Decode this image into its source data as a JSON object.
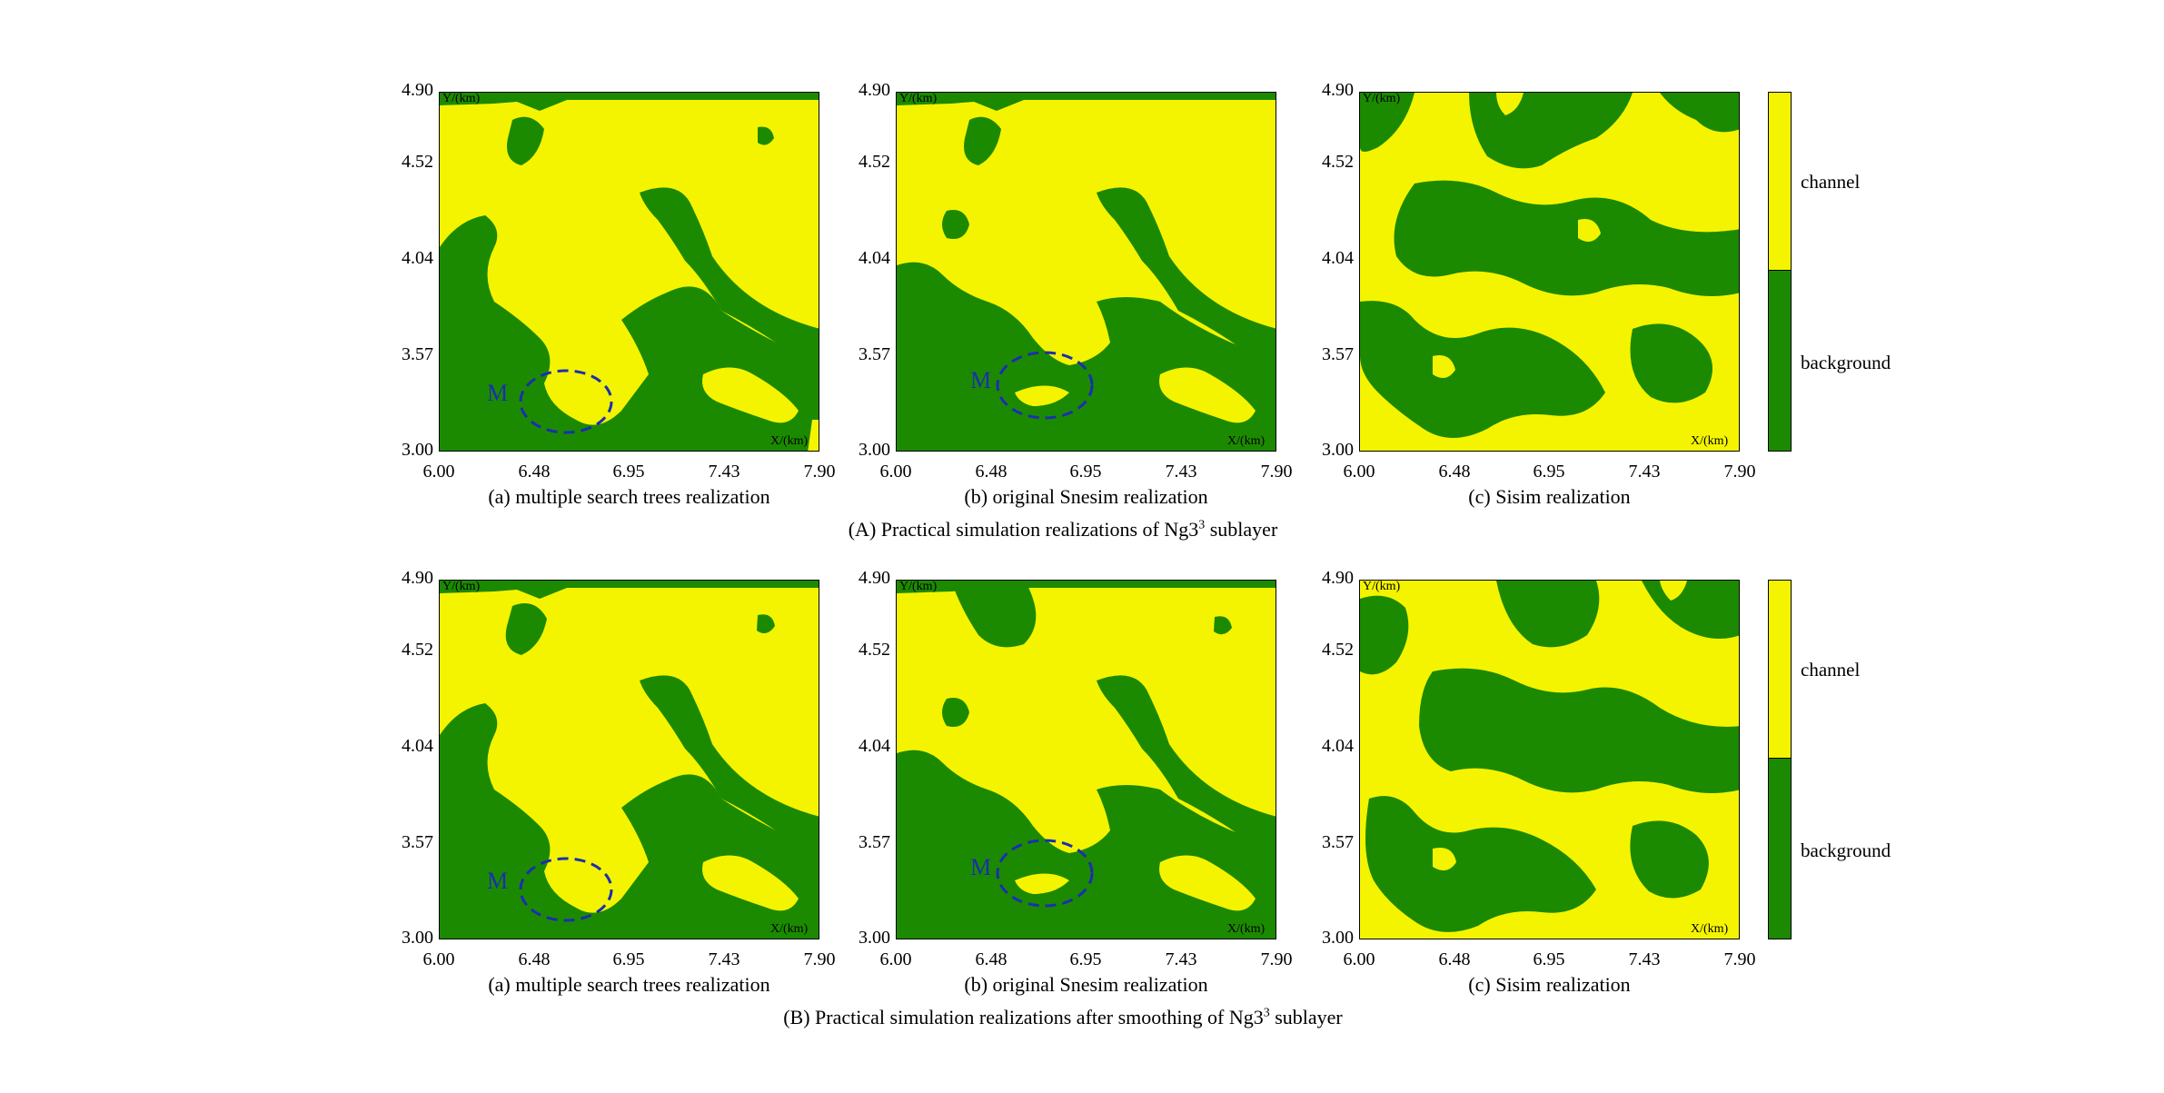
{
  "colors": {
    "channel": "#f4f400",
    "background": "#1c8a00",
    "marker": "#1a2fb0"
  },
  "axes": {
    "y_ticks": [
      "4.90",
      "4.52",
      "4.04",
      "3.57",
      "3.00"
    ],
    "x_ticks": [
      "6.00",
      "6.48",
      "6.95",
      "7.43",
      "7.90"
    ],
    "y_title": "Y/(km)",
    "x_title": "X/(km)"
  },
  "legend": {
    "channel_label": "channel",
    "background_label": "background"
  },
  "marker_label": "M",
  "rows": [
    {
      "caption_main": "(A) Practical simulation realizations of Ng3",
      "caption_sup": "3",
      "caption_tail": " sublayer",
      "panels": [
        {
          "caption": "(a) multiple search trees realization"
        },
        {
          "caption": "(b) original Snesim realization"
        },
        {
          "caption": "(c) Sisim realization"
        }
      ]
    },
    {
      "caption_main": "(B) Practical simulation realizations after smoothing of Ng3",
      "caption_sup": "3",
      "caption_tail": " sublayer",
      "panels": [
        {
          "caption": "(a) multiple search trees realization"
        },
        {
          "caption": "(b) original Snesim realization"
        },
        {
          "caption": "(c) Sisim realization"
        }
      ]
    }
  ]
}
